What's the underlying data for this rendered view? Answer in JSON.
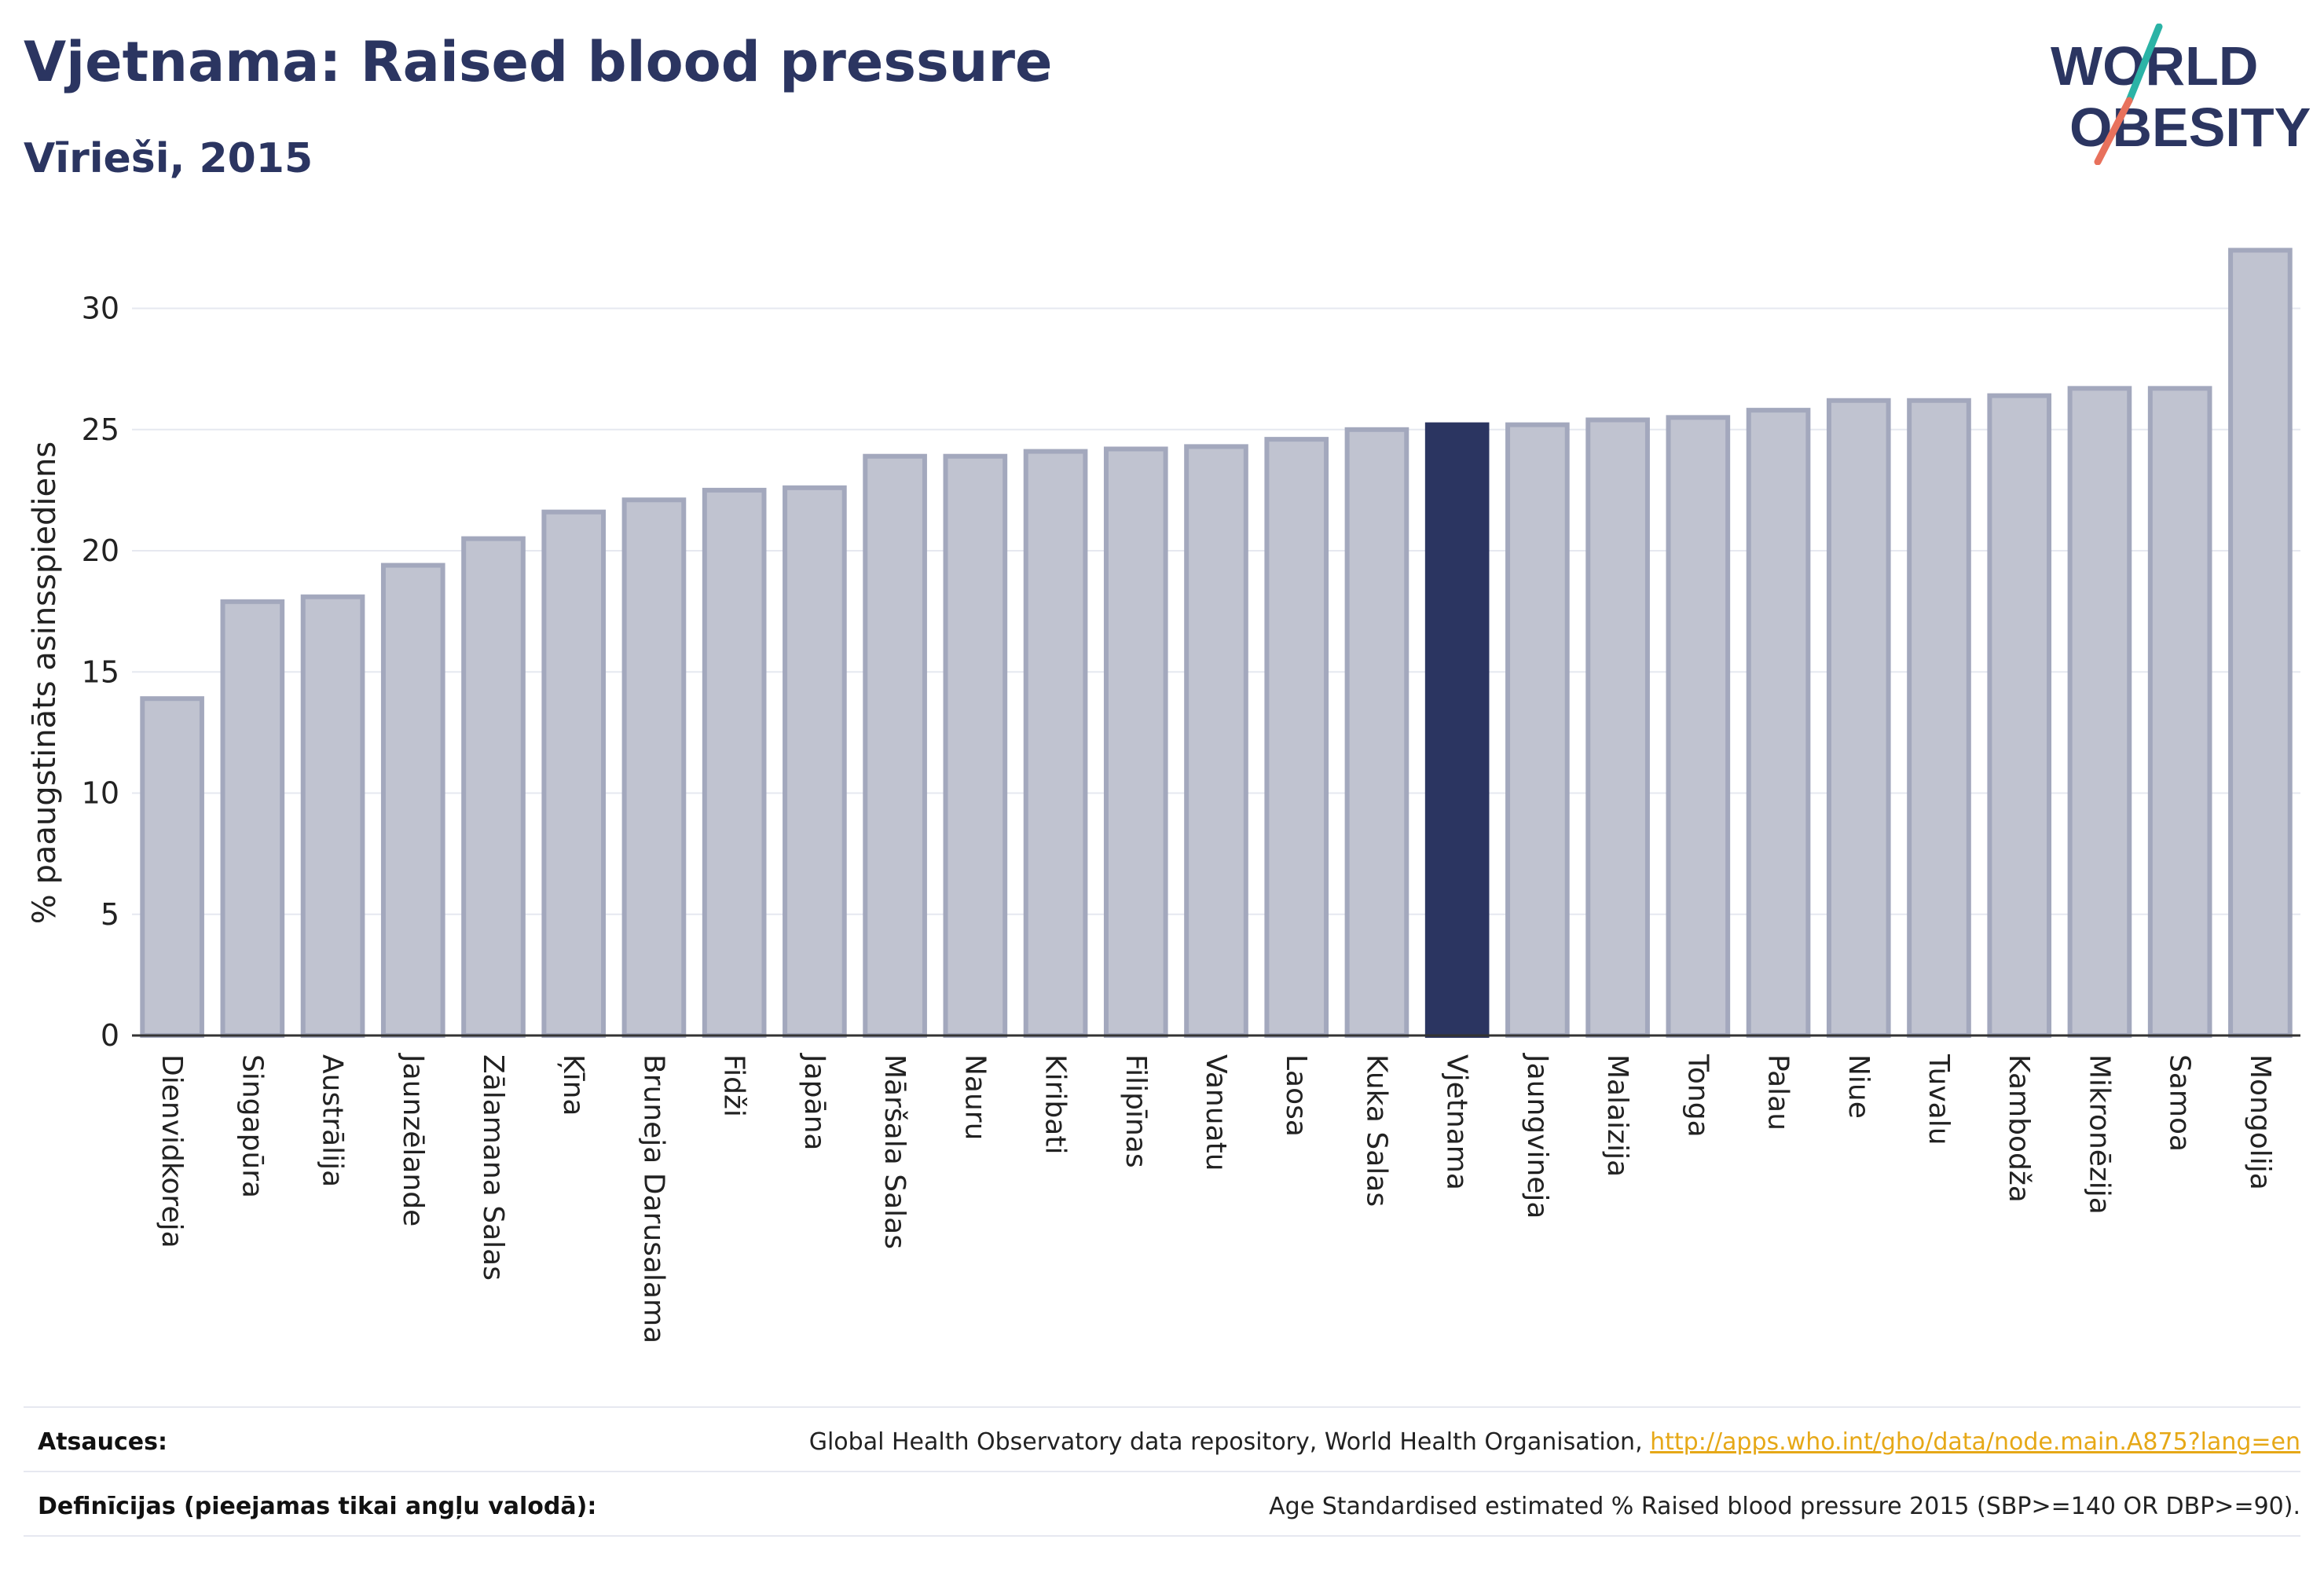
{
  "header": {
    "title": "Vjetnama: Raised blood pressure",
    "subtitle": "Vīrieši, 2015"
  },
  "logo": {
    "line1": "WORLD",
    "line2": "OBESITY",
    "colors": {
      "text": "#2b3561",
      "slash_top": "#2bb3a6",
      "slash_bottom": "#e8715c"
    }
  },
  "chart_data": {
    "type": "bar",
    "ylabel": "% paaugstināts asinsspiediens",
    "ylim": [
      0,
      33
    ],
    "yticks": [
      0,
      5,
      10,
      15,
      20,
      25,
      30
    ],
    "grid": true,
    "highlight": "Vjetnama",
    "colors": {
      "bar": "#c0c3d0",
      "bar_edge": "#a3a8bd",
      "highlight": "#2b3561",
      "grid": "#e6e8f0",
      "axis": "#333333"
    },
    "categories": [
      "Dienvidkoreja",
      "Singapūra",
      "Austrālija",
      "Jaunzēlande",
      "Zālamana Salas",
      "Ķīna",
      "Bruneja Darusalama",
      "Fidži",
      "Japāna",
      "Māršala Salas",
      "Nauru",
      "Kiribati",
      "Filipīnas",
      "Vanuatu",
      "Laosa",
      "Kuka Salas",
      "Vjetnama",
      "Jaungvineja",
      "Malaizija",
      "Tonga",
      "Palau",
      "Niue",
      "Tuvalu",
      "Kambodža",
      "Mikronēzija",
      "Samoa",
      "Mongolija"
    ],
    "values": [
      13.9,
      17.9,
      18.1,
      19.4,
      20.5,
      21.6,
      22.1,
      22.5,
      22.6,
      23.9,
      23.9,
      24.1,
      24.2,
      24.3,
      24.6,
      25.0,
      25.2,
      25.2,
      25.4,
      25.5,
      25.8,
      26.2,
      26.2,
      26.4,
      26.7,
      26.7,
      32.4
    ]
  },
  "footer": {
    "sources_label": "Atsauces:",
    "sources_text": "Global Health Observatory data repository, World Health Organisation, ",
    "sources_link": "http://apps.who.int/gho/data/node.main.A875?lang=en",
    "definitions_label": "Definīcijas (pieejamas tikai angļu valodā):",
    "definitions_text": "Age Standardised estimated % Raised blood pressure 2015 (SBP>=140 OR DBP>=90)."
  }
}
